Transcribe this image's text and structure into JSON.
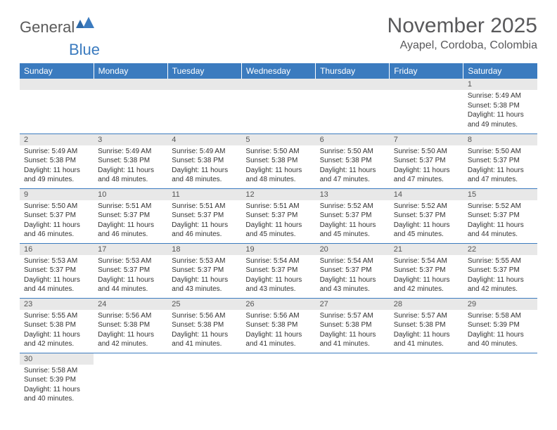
{
  "logo": {
    "part1": "General",
    "part2": "Blue"
  },
  "title": "November 2025",
  "location": "Ayapel, Cordoba, Colombia",
  "colors": {
    "header_bg": "#3b7bbf",
    "header_text": "#ffffff",
    "daynum_bg": "#e8e8e8",
    "border": "#3b7bbf",
    "title_color": "#59595b"
  },
  "weekdays": [
    "Sunday",
    "Monday",
    "Tuesday",
    "Wednesday",
    "Thursday",
    "Friday",
    "Saturday"
  ],
  "weeks": [
    [
      null,
      null,
      null,
      null,
      null,
      null,
      {
        "n": "1",
        "rise": "5:49 AM",
        "set": "5:38 PM",
        "dl": "11 hours and 49 minutes."
      }
    ],
    [
      {
        "n": "2",
        "rise": "5:49 AM",
        "set": "5:38 PM",
        "dl": "11 hours and 49 minutes."
      },
      {
        "n": "3",
        "rise": "5:49 AM",
        "set": "5:38 PM",
        "dl": "11 hours and 48 minutes."
      },
      {
        "n": "4",
        "rise": "5:49 AM",
        "set": "5:38 PM",
        "dl": "11 hours and 48 minutes."
      },
      {
        "n": "5",
        "rise": "5:50 AM",
        "set": "5:38 PM",
        "dl": "11 hours and 48 minutes."
      },
      {
        "n": "6",
        "rise": "5:50 AM",
        "set": "5:38 PM",
        "dl": "11 hours and 47 minutes."
      },
      {
        "n": "7",
        "rise": "5:50 AM",
        "set": "5:37 PM",
        "dl": "11 hours and 47 minutes."
      },
      {
        "n": "8",
        "rise": "5:50 AM",
        "set": "5:37 PM",
        "dl": "11 hours and 47 minutes."
      }
    ],
    [
      {
        "n": "9",
        "rise": "5:50 AM",
        "set": "5:37 PM",
        "dl": "11 hours and 46 minutes."
      },
      {
        "n": "10",
        "rise": "5:51 AM",
        "set": "5:37 PM",
        "dl": "11 hours and 46 minutes."
      },
      {
        "n": "11",
        "rise": "5:51 AM",
        "set": "5:37 PM",
        "dl": "11 hours and 46 minutes."
      },
      {
        "n": "12",
        "rise": "5:51 AM",
        "set": "5:37 PM",
        "dl": "11 hours and 45 minutes."
      },
      {
        "n": "13",
        "rise": "5:52 AM",
        "set": "5:37 PM",
        "dl": "11 hours and 45 minutes."
      },
      {
        "n": "14",
        "rise": "5:52 AM",
        "set": "5:37 PM",
        "dl": "11 hours and 45 minutes."
      },
      {
        "n": "15",
        "rise": "5:52 AM",
        "set": "5:37 PM",
        "dl": "11 hours and 44 minutes."
      }
    ],
    [
      {
        "n": "16",
        "rise": "5:53 AM",
        "set": "5:37 PM",
        "dl": "11 hours and 44 minutes."
      },
      {
        "n": "17",
        "rise": "5:53 AM",
        "set": "5:37 PM",
        "dl": "11 hours and 44 minutes."
      },
      {
        "n": "18",
        "rise": "5:53 AM",
        "set": "5:37 PM",
        "dl": "11 hours and 43 minutes."
      },
      {
        "n": "19",
        "rise": "5:54 AM",
        "set": "5:37 PM",
        "dl": "11 hours and 43 minutes."
      },
      {
        "n": "20",
        "rise": "5:54 AM",
        "set": "5:37 PM",
        "dl": "11 hours and 43 minutes."
      },
      {
        "n": "21",
        "rise": "5:54 AM",
        "set": "5:37 PM",
        "dl": "11 hours and 42 minutes."
      },
      {
        "n": "22",
        "rise": "5:55 AM",
        "set": "5:37 PM",
        "dl": "11 hours and 42 minutes."
      }
    ],
    [
      {
        "n": "23",
        "rise": "5:55 AM",
        "set": "5:38 PM",
        "dl": "11 hours and 42 minutes."
      },
      {
        "n": "24",
        "rise": "5:56 AM",
        "set": "5:38 PM",
        "dl": "11 hours and 42 minutes."
      },
      {
        "n": "25",
        "rise": "5:56 AM",
        "set": "5:38 PM",
        "dl": "11 hours and 41 minutes."
      },
      {
        "n": "26",
        "rise": "5:56 AM",
        "set": "5:38 PM",
        "dl": "11 hours and 41 minutes."
      },
      {
        "n": "27",
        "rise": "5:57 AM",
        "set": "5:38 PM",
        "dl": "11 hours and 41 minutes."
      },
      {
        "n": "28",
        "rise": "5:57 AM",
        "set": "5:38 PM",
        "dl": "11 hours and 41 minutes."
      },
      {
        "n": "29",
        "rise": "5:58 AM",
        "set": "5:39 PM",
        "dl": "11 hours and 40 minutes."
      }
    ],
    [
      {
        "n": "30",
        "rise": "5:58 AM",
        "set": "5:39 PM",
        "dl": "11 hours and 40 minutes."
      },
      null,
      null,
      null,
      null,
      null,
      null
    ]
  ],
  "labels": {
    "sunrise": "Sunrise: ",
    "sunset": "Sunset: ",
    "daylight": "Daylight: "
  }
}
